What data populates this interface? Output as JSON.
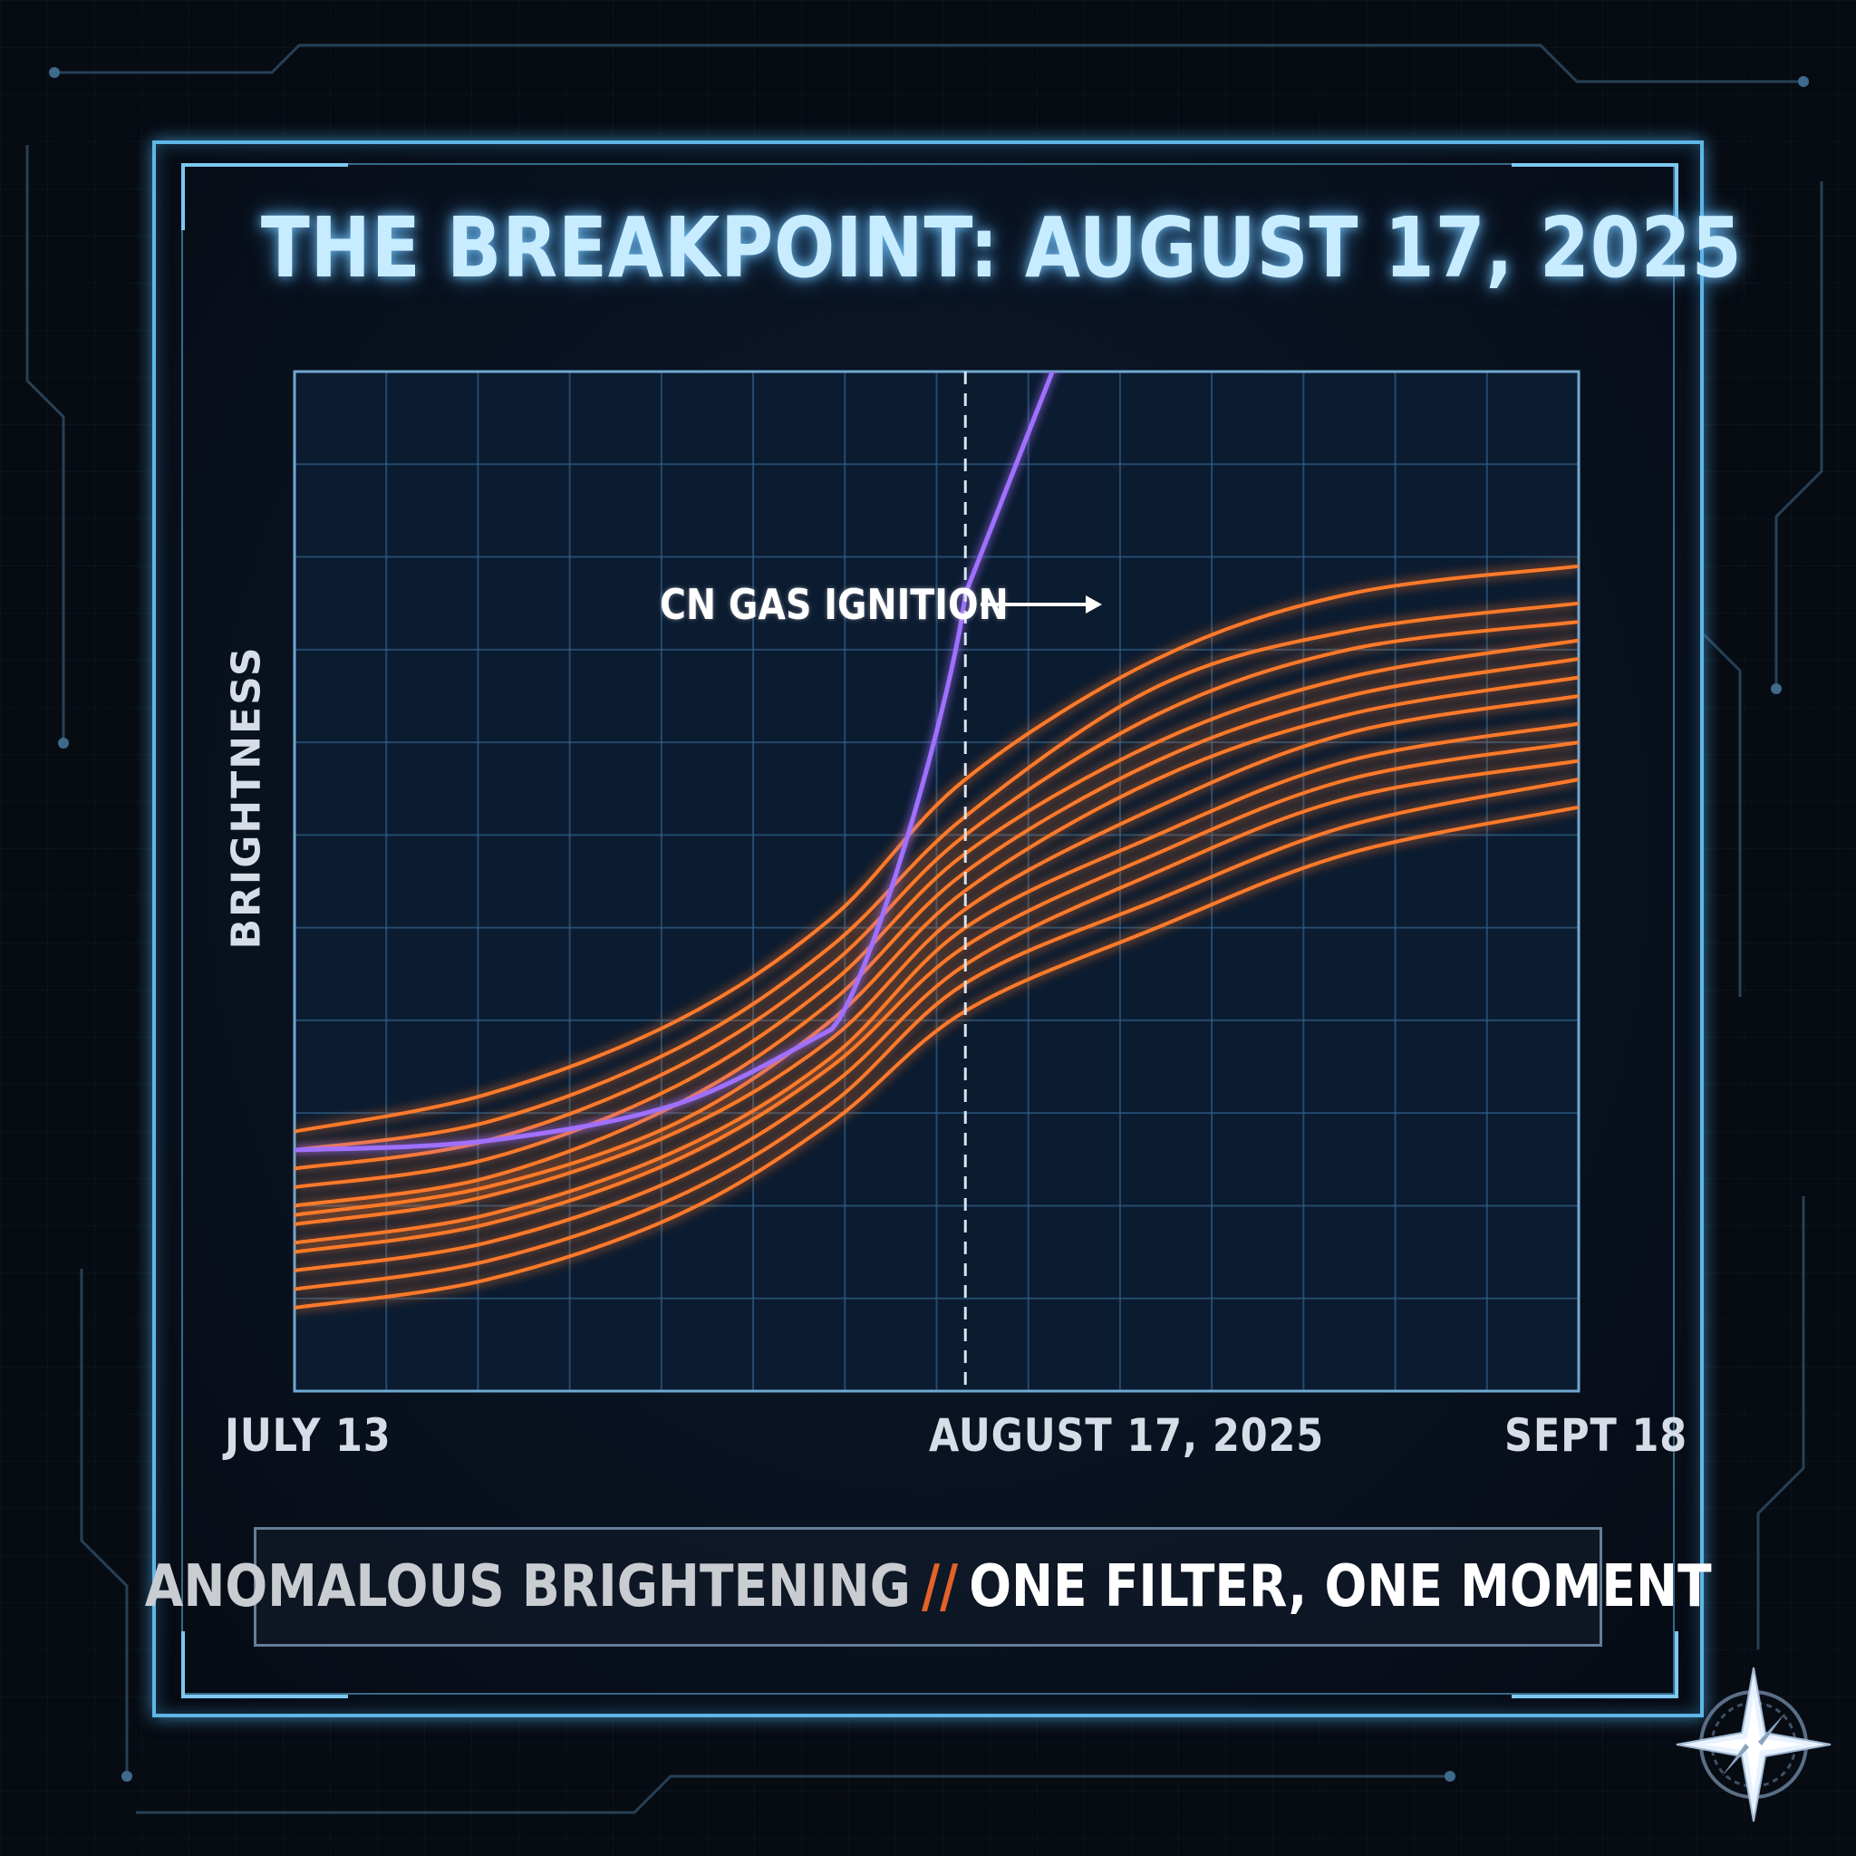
{
  "title": "THE BREAKPOINT: AUGUST 17, 2025",
  "footer": {
    "left": "ANOMALOUS BRIGHTENING",
    "separator": "//",
    "right": "ONE FILTER, ONE MOMENT"
  },
  "colors": {
    "accent_frame": "#5fb6e6",
    "purple_series": "#a070ff",
    "orange_series": "#ff7a2a",
    "separator": "#e2622a"
  },
  "icons": [
    "compass-star-logo-icon",
    "arrow-right-icon"
  ],
  "chart_data": {
    "type": "line",
    "title": "THE BREAKPOINT: AUGUST 17, 2025",
    "xlabel": "",
    "ylabel": "BRIGHTNESS",
    "x_tick_labels": [
      "JULY 13",
      "AUGUST 17, 2025",
      "SEPT 18"
    ],
    "x_range": [
      "2025-07-13",
      "2025-09-18"
    ],
    "y_range": [
      0,
      11
    ],
    "grid": true,
    "breakpoint": {
      "x": "2025-08-17",
      "style": "dashed"
    },
    "annotation": {
      "text": "CN GAS IGNITION",
      "x": "2025-08-17",
      "y": 8.5
    },
    "x": [
      "2025-07-13",
      "2025-07-23",
      "2025-08-02",
      "2025-08-10",
      "2025-08-17",
      "2025-08-27",
      "2025-09-06",
      "2025-09-18"
    ],
    "series": [
      {
        "color": "#a070ff",
        "values": [
          2.6,
          2.7,
          3.1,
          3.9,
          8.6,
          null,
          null,
          null
        ]
      },
      {
        "color": "#ff7a2a",
        "values": [
          2.8,
          3.2,
          4.0,
          5.1,
          6.6,
          7.9,
          8.6,
          8.9
        ]
      },
      {
        "color": "#ff7a2a",
        "values": [
          2.6,
          2.9,
          3.7,
          4.8,
          6.2,
          7.6,
          8.2,
          8.5
        ]
      },
      {
        "color": "#ff7a2a",
        "values": [
          2.4,
          2.7,
          3.5,
          4.6,
          6.0,
          7.3,
          8.0,
          8.3
        ]
      },
      {
        "color": "#ff7a2a",
        "values": [
          2.2,
          2.5,
          3.3,
          4.4,
          5.8,
          7.0,
          7.7,
          8.1
        ]
      },
      {
        "color": "#ff7a2a",
        "values": [
          2.0,
          2.3,
          3.1,
          4.2,
          5.6,
          6.8,
          7.5,
          7.9
        ]
      },
      {
        "color": "#ff7a2a",
        "values": [
          1.9,
          2.2,
          2.9,
          4.0,
          5.4,
          6.6,
          7.3,
          7.7
        ]
      },
      {
        "color": "#ff7a2a",
        "values": [
          1.8,
          2.1,
          2.8,
          3.8,
          5.2,
          6.3,
          7.1,
          7.5
        ]
      },
      {
        "color": "#ff7a2a",
        "values": [
          1.6,
          1.9,
          2.6,
          3.6,
          5.0,
          6.0,
          6.8,
          7.2
        ]
      },
      {
        "color": "#ff7a2a",
        "values": [
          1.5,
          1.8,
          2.5,
          3.5,
          4.8,
          5.8,
          6.6,
          7.0
        ]
      },
      {
        "color": "#ff7a2a",
        "values": [
          1.3,
          1.6,
          2.3,
          3.3,
          4.6,
          5.6,
          6.4,
          6.8
        ]
      },
      {
        "color": "#ff7a2a",
        "values": [
          1.1,
          1.4,
          2.1,
          3.1,
          4.4,
          5.3,
          6.1,
          6.6
        ]
      },
      {
        "color": "#ff7a2a",
        "values": [
          0.9,
          1.2,
          1.9,
          2.9,
          4.1,
          5.0,
          5.8,
          6.3
        ]
      }
    ]
  }
}
